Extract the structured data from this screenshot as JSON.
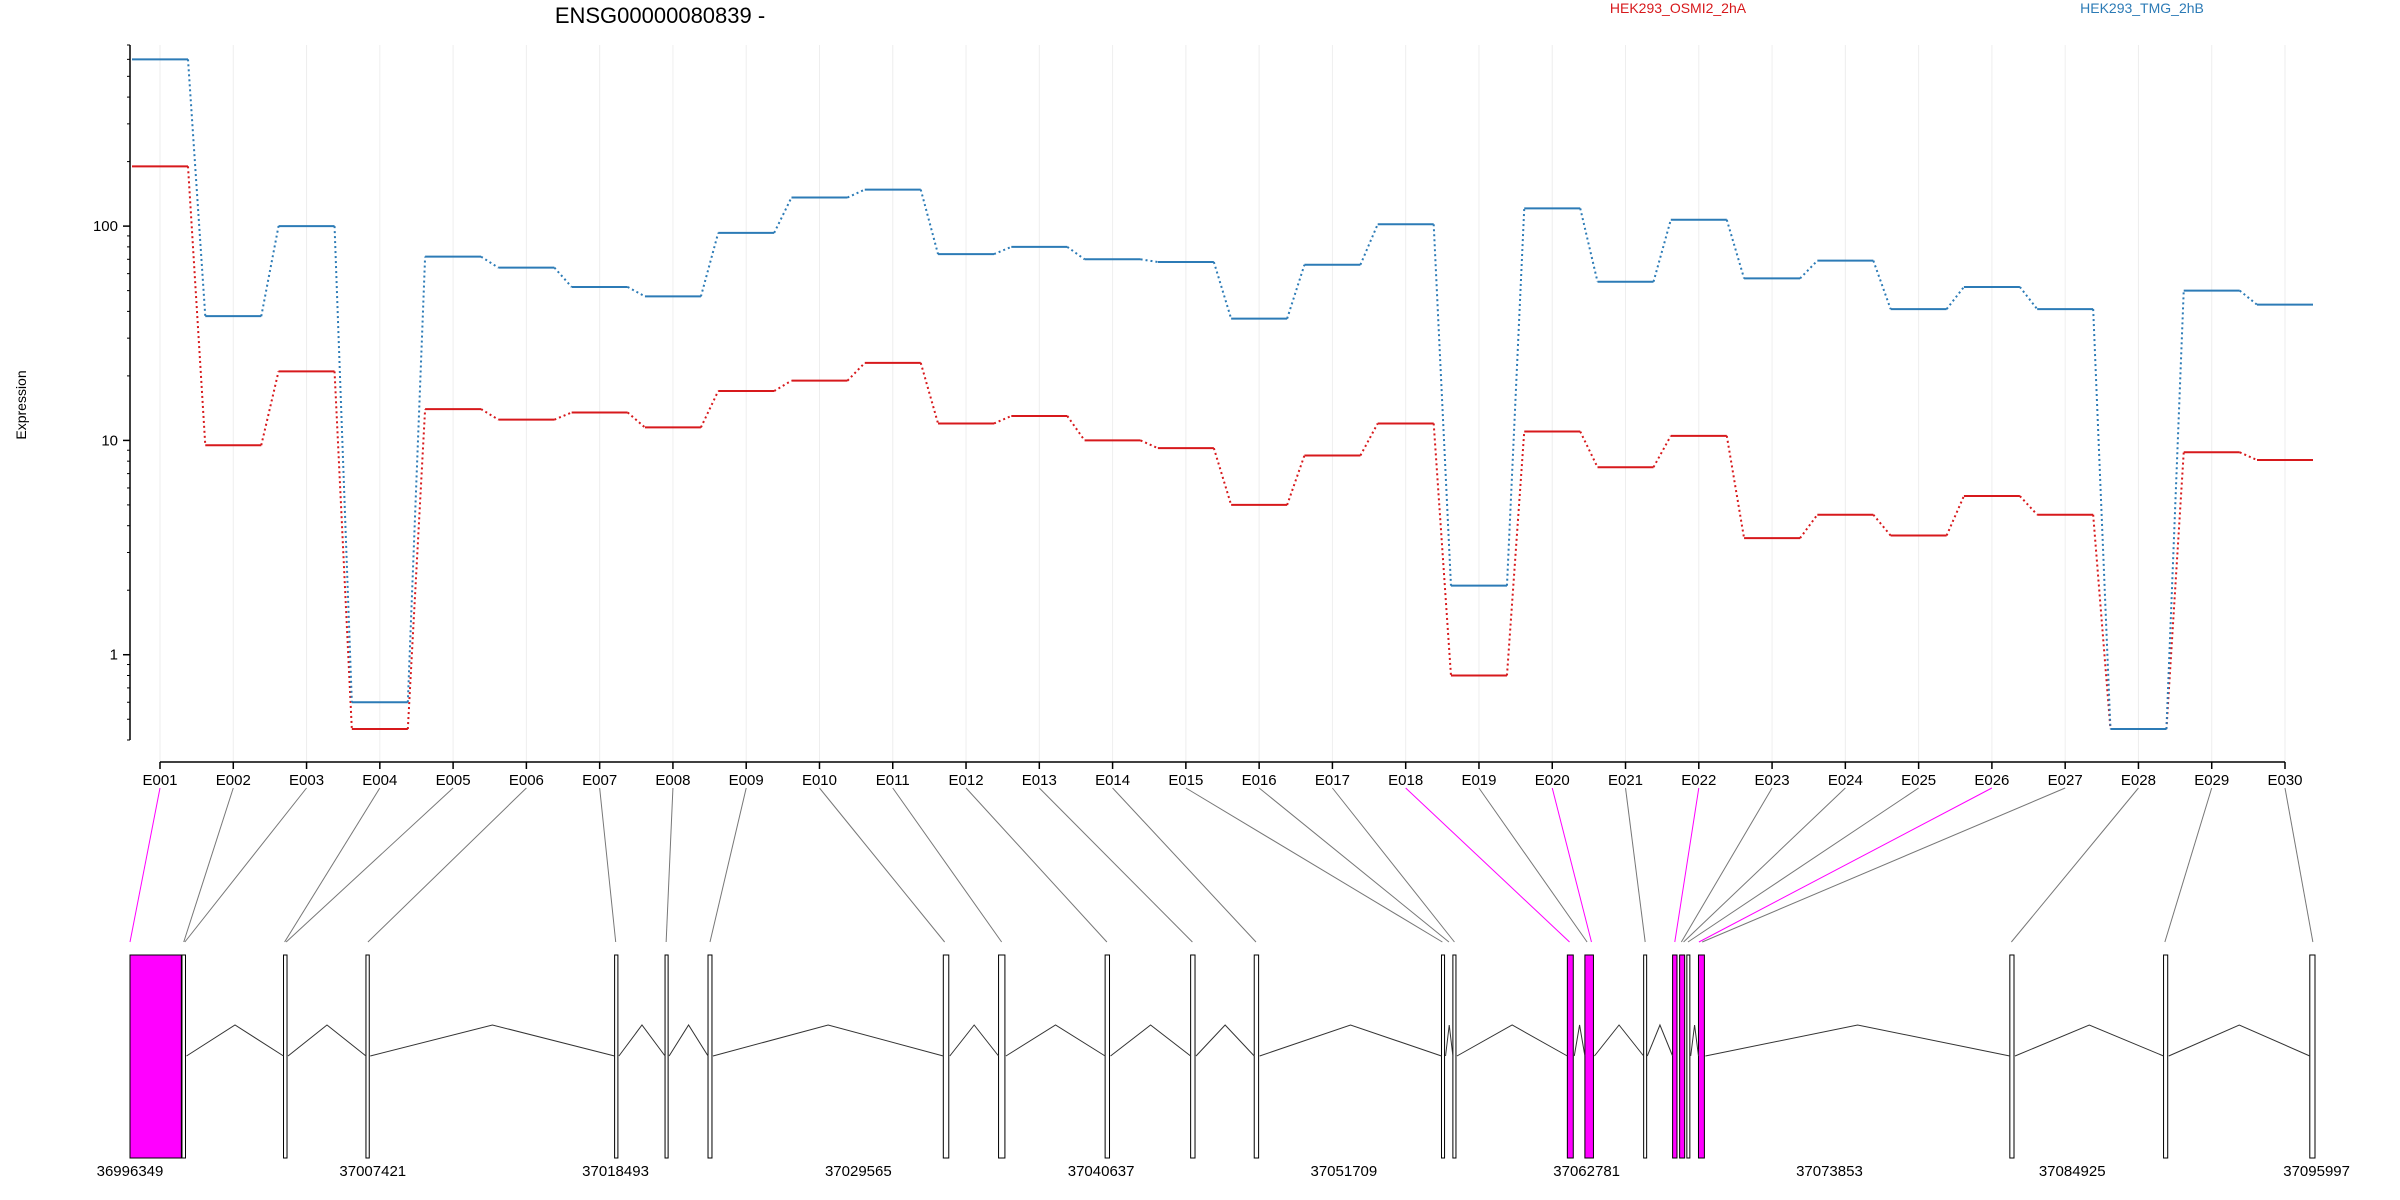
{
  "chart_data": {
    "type": "line",
    "title": "ENSG00000080839 -",
    "xlabel": "",
    "ylabel": "Expression",
    "yscale": "log",
    "ylim": [
      0.4,
      700
    ],
    "y_ticks": [
      1,
      10,
      100
    ],
    "y_tick_labels": [
      "1",
      "10",
      "100"
    ],
    "categories": [
      "E001",
      "E002",
      "E003",
      "E004",
      "E005",
      "E006",
      "E007",
      "E008",
      "E009",
      "E010",
      "E011",
      "E012",
      "E013",
      "E014",
      "E015",
      "E016",
      "E017",
      "E018",
      "E019",
      "E020",
      "E021",
      "E022",
      "E023",
      "E024",
      "E025",
      "E026",
      "E027",
      "E028",
      "E029",
      "E030"
    ],
    "series": [
      {
        "name": "HEK293_OSMI2_2hA",
        "color": "#d7191c",
        "values": [
          190,
          9.5,
          21,
          0.45,
          14,
          12.5,
          13.5,
          11.5,
          17,
          19,
          23,
          12,
          13,
          10,
          9.2,
          5,
          8.5,
          12,
          0.8,
          11,
          7.5,
          10.5,
          3.5,
          4.5,
          3.6,
          5.5,
          4.5,
          0.45,
          8.8,
          8.1
        ]
      },
      {
        "name": "HEK293_TMG_2hB",
        "color": "#2c7bb6",
        "values": [
          600,
          38,
          100,
          0.6,
          72,
          64,
          52,
          47,
          93,
          136,
          148,
          74,
          80,
          70,
          68,
          37,
          66,
          102,
          2.1,
          121,
          55,
          107,
          57,
          69,
          41,
          52,
          41,
          0.45,
          50,
          43
        ]
      }
    ],
    "genomic_axis": {
      "labels": [
        "36996349",
        "37007421",
        "37018493",
        "37029565",
        "37040637",
        "37051709",
        "37062781",
        "37073853",
        "37084925",
        "37095997"
      ]
    },
    "highlight_color": "#ff00ff"
  }
}
